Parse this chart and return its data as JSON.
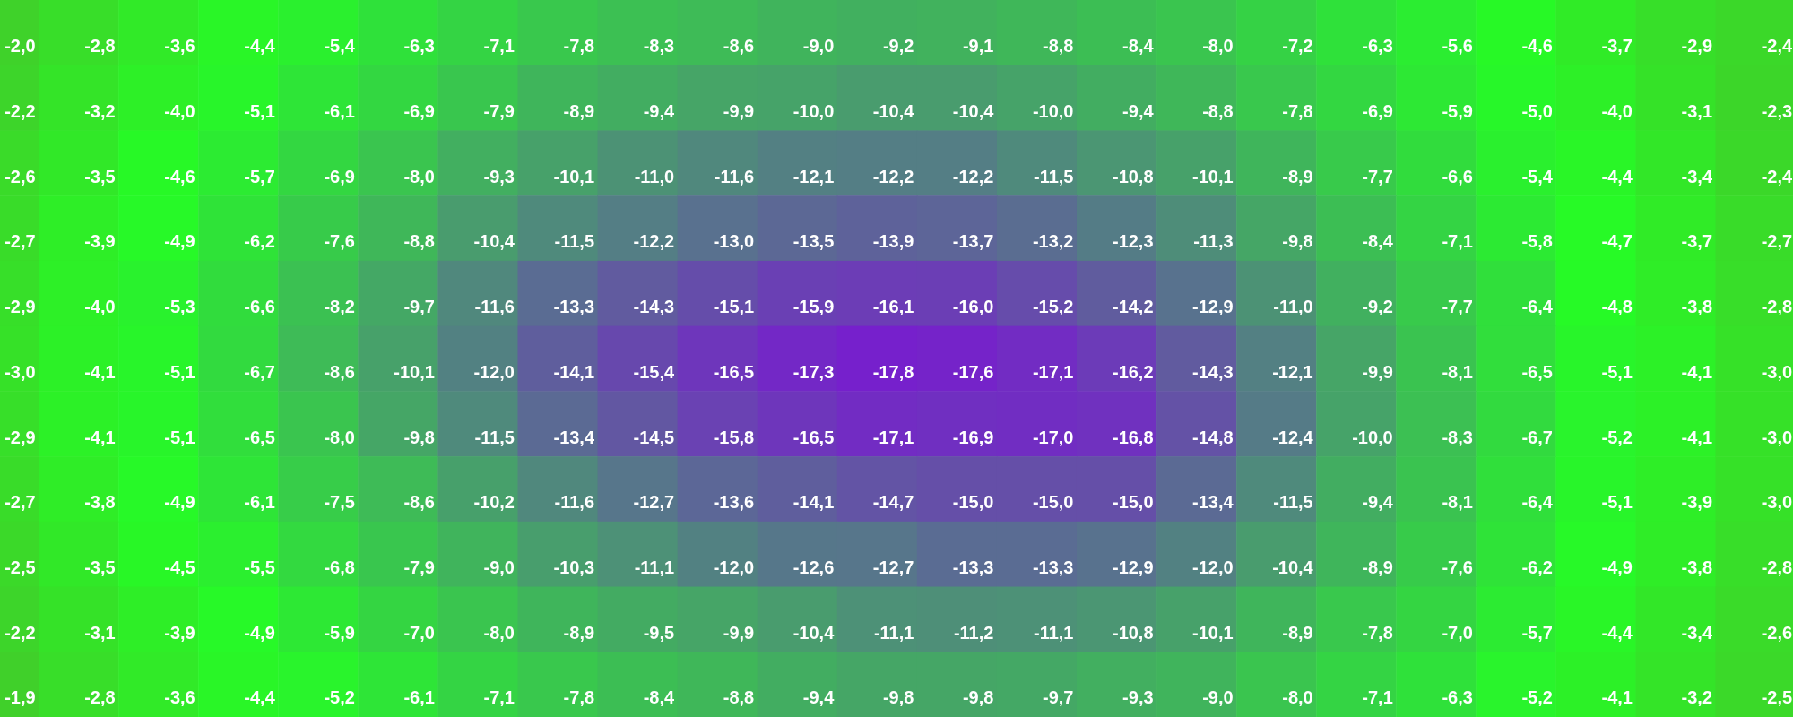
{
  "chart_data": {
    "type": "heatmap",
    "categories": [
      null,
      null,
      null,
      null,
      null,
      null,
      null,
      null,
      null,
      null,
      null,
      null,
      null,
      null,
      null,
      null,
      null,
      null,
      null,
      null,
      null,
      null,
      null
    ],
    "y_categories": [
      null,
      null,
      null,
      null,
      null,
      null,
      null,
      null,
      null,
      null,
      null
    ],
    "tick_labels": false,
    "colors": [
      "#7620cc",
      "#26fb26",
      "#40d02a"
    ],
    "cells": [
      [
        -2.0,
        -2.8,
        -3.6,
        -4.4,
        -5.4,
        -6.3,
        -7.1,
        -7.8,
        -8.3,
        -8.6,
        -9.0,
        -9.2,
        -9.1,
        -8.8,
        -8.4,
        -8.0,
        -7.2,
        -6.3,
        -5.6,
        -4.6,
        -3.7,
        -2.9,
        -2.4
      ],
      [
        -2.2,
        -3.2,
        -4.0,
        -5.1,
        -6.1,
        -6.9,
        -7.9,
        -8.9,
        -9.4,
        -9.9,
        -10.0,
        -10.4,
        -10.4,
        -10.0,
        -9.4,
        -8.8,
        -7.8,
        -6.9,
        -5.9,
        -5.0,
        -4.0,
        -3.1,
        -2.3
      ],
      [
        -2.6,
        -3.5,
        -4.6,
        -5.7,
        -6.9,
        -8.0,
        -9.3,
        -10.1,
        -11.0,
        -11.6,
        -12.1,
        -12.2,
        -12.2,
        -11.5,
        -10.8,
        -10.1,
        -8.9,
        -7.7,
        -6.6,
        -5.4,
        -4.4,
        -3.4,
        -2.4
      ],
      [
        -2.7,
        -3.9,
        -4.9,
        -6.2,
        -7.6,
        -8.8,
        -10.4,
        -11.5,
        -12.2,
        -13.0,
        -13.5,
        -13.9,
        -13.7,
        -13.2,
        -12.3,
        -11.3,
        -9.8,
        -8.4,
        -7.1,
        -5.8,
        -4.7,
        -3.7,
        -2.7
      ],
      [
        -2.9,
        -4.0,
        -5.3,
        -6.6,
        -8.2,
        -9.7,
        -11.6,
        -13.3,
        -14.3,
        -15.1,
        -15.9,
        -16.1,
        -16.0,
        -15.2,
        -14.2,
        -12.9,
        -11.0,
        -9.2,
        -7.7,
        -6.4,
        -4.8,
        -3.8,
        -2.8
      ],
      [
        -3.0,
        -4.1,
        -5.1,
        -6.7,
        -8.6,
        -10.1,
        -12.0,
        -14.1,
        -15.4,
        -16.5,
        -17.3,
        -17.8,
        -17.6,
        -17.1,
        -16.2,
        -14.3,
        -12.1,
        -9.9,
        -8.1,
        -6.5,
        -5.1,
        -4.1,
        -3.0
      ],
      [
        -2.9,
        -4.1,
        -5.1,
        -6.5,
        -8.0,
        -9.8,
        -11.5,
        -13.4,
        -14.5,
        -15.8,
        -16.5,
        -17.1,
        -16.9,
        -17.0,
        -16.8,
        -14.8,
        -12.4,
        -10.0,
        -8.3,
        -6.7,
        -5.2,
        -4.1,
        -3.0
      ],
      [
        -2.7,
        -3.8,
        -4.9,
        -6.1,
        -7.5,
        -8.6,
        -10.2,
        -11.6,
        -12.7,
        -13.6,
        -14.1,
        -14.7,
        -15.0,
        -15.0,
        -15.0,
        -13.4,
        -11.5,
        -9.4,
        -8.1,
        -6.4,
        -5.1,
        -3.9,
        -3.0
      ],
      [
        -2.5,
        -3.5,
        -4.5,
        -5.5,
        -6.8,
        -7.9,
        -9.0,
        -10.3,
        -11.1,
        -12.0,
        -12.6,
        -12.7,
        -13.3,
        -13.3,
        -12.9,
        -12.0,
        -10.4,
        -8.9,
        -7.6,
        -6.2,
        -4.9,
        -3.8,
        -2.8
      ],
      [
        -2.2,
        -3.1,
        -3.9,
        -4.9,
        -5.9,
        -7.0,
        -8.0,
        -8.9,
        -9.5,
        -9.9,
        -10.4,
        -11.1,
        -11.2,
        -11.1,
        -10.8,
        -10.1,
        -8.9,
        -7.8,
        -7.0,
        -5.7,
        -4.4,
        -3.4,
        -2.6
      ],
      [
        -1.9,
        -2.8,
        -3.6,
        -4.4,
        -5.2,
        -6.1,
        -7.1,
        -7.8,
        -8.4,
        -8.8,
        -9.4,
        -9.8,
        -9.8,
        -9.7,
        -9.3,
        -9.0,
        -8.0,
        -7.1,
        -6.3,
        -5.2,
        -4.1,
        -3.2,
        -2.5
      ]
    ],
    "cell_labels": [
      [
        "-2,0",
        "-2,8",
        "-3,6",
        "-4,4",
        "-5,4",
        "-6,3",
        "-7,1",
        "-7,8",
        "-8,3",
        "-8,6",
        "-9,0",
        "-9,2",
        "-9,1",
        "-8,8",
        "-8,4",
        "-8,0",
        "-7,2",
        "-6,3",
        "-5,6",
        "-4,6",
        "-3,7",
        "-2,9",
        "-2,4"
      ],
      [
        "-2,2",
        "-3,2",
        "-4,0",
        "-5,1",
        "-6,1",
        "-6,9",
        "-7,9",
        "-8,9",
        "-9,4",
        "-9,9",
        "-10,0",
        "-10,4",
        "-10,4",
        "-10,0",
        "-9,4",
        "-8,8",
        "-7,8",
        "-6,9",
        "-5,9",
        "-5,0",
        "-4,0",
        "-3,1",
        "-2,3"
      ],
      [
        "-2,6",
        "-3,5",
        "-4,6",
        "-5,7",
        "-6,9",
        "-8,0",
        "-9,3",
        "-10,1",
        "-11,0",
        "-11,6",
        "-12,1",
        "-12,2",
        "-12,2",
        "-11,5",
        "-10,8",
        "-10,1",
        "-8,9",
        "-7,7",
        "-6,6",
        "-5,4",
        "-4,4",
        "-3,4",
        "-2,4"
      ],
      [
        "-2,7",
        "-3,9",
        "-4,9",
        "-6,2",
        "-7,6",
        "-8,8",
        "-10,4",
        "-11,5",
        "-12,2",
        "-13,0",
        "-13,5",
        "-13,9",
        "-13,7",
        "-13,2",
        "-12,3",
        "-11,3",
        "-9,8",
        "-8,4",
        "-7,1",
        "-5,8",
        "-4,7",
        "-3,7",
        "-2,7"
      ],
      [
        "-2,9",
        "-4,0",
        "-5,3",
        "-6,6",
        "-8,2",
        "-9,7",
        "-11,6",
        "-13,3",
        "-14,3",
        "-15,1",
        "-15,9",
        "-16,1",
        "-16,0",
        "-15,2",
        "-14,2",
        "-12,9",
        "-11,0",
        "-9,2",
        "-7,7",
        "-6,4",
        "-4,8",
        "-3,8",
        "-2,8"
      ],
      [
        "-3,0",
        "-4,1",
        "-5,1",
        "-6,7",
        "-8,6",
        "-10,1",
        "-12,0",
        "-14,1",
        "-15,4",
        "-16,5",
        "-17,3",
        "-17,8",
        "-17,6",
        "-17,1",
        "-16,2",
        "-14,3",
        "-12,1",
        "-9,9",
        "-8,1",
        "-6,5",
        "-5,1",
        "-4,1",
        "-3,0"
      ],
      [
        "-2,9",
        "-4,1",
        "-5,1",
        "-6,5",
        "-8,0",
        "-9,8",
        "-11,5",
        "-13,4",
        "-14,5",
        "-15,8",
        "-16,5",
        "-17,1",
        "-16,9",
        "-17,0",
        "-16,8",
        "-14,8",
        "-12,4",
        "-10,0",
        "-8,3",
        "-6,7",
        "-5,2",
        "-4,1",
        "-3,0"
      ],
      [
        "-2,7",
        "-3,8",
        "-4,9",
        "-6,1",
        "-7,5",
        "-8,6",
        "-10,2",
        "-11,6",
        "-12,7",
        "-13,6",
        "-14,1",
        "-14,7",
        "-15,0",
        "-15,0",
        "-15,0",
        "-13,4",
        "-11,5",
        "-9,4",
        "-8,1",
        "-6,4",
        "-5,1",
        "-3,9",
        "-3,0"
      ],
      [
        "-2,5",
        "-3,5",
        "-4,5",
        "-5,5",
        "-6,8",
        "-7,9",
        "-9,0",
        "-10,3",
        "-11,1",
        "-12,0",
        "-12,6",
        "-12,7",
        "-13,3",
        "-13,3",
        "-12,9",
        "-12,0",
        "-10,4",
        "-8,9",
        "-7,6",
        "-6,2",
        "-4,9",
        "-3,8",
        "-2,8"
      ],
      [
        "-2,2",
        "-3,1",
        "-3,9",
        "-4,9",
        "-5,9",
        "-7,0",
        "-8,0",
        "-8,9",
        "-9,5",
        "-9,9",
        "-10,4",
        "-11,1",
        "-11,2",
        "-11,1",
        "-10,8",
        "-10,1",
        "-8,9",
        "-7,8",
        "-7,0",
        "-5,7",
        "-4,4",
        "-3,4",
        "-2,6"
      ],
      [
        "-1,9",
        "-2,8",
        "-3,6",
        "-4,4",
        "-5,2",
        "-6,1",
        "-7,1",
        "-7,8",
        "-8,4",
        "-8,8",
        "-9,4",
        "-9,8",
        "-9,8",
        "-9,7",
        "-9,3",
        "-9,0",
        "-8,0",
        "-7,1",
        "-6,3",
        "-5,2",
        "-4,1",
        "-3,2",
        "-2,5"
      ]
    ]
  }
}
